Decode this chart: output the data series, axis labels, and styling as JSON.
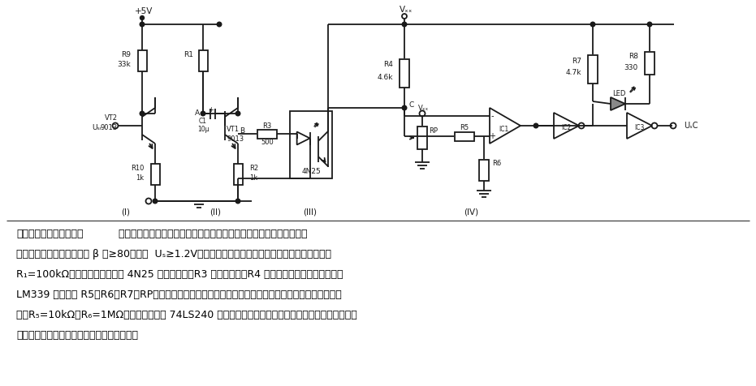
{
  "bg_color": "#ffffff",
  "lc": "#1a1a1a",
  "lw": 1.3,
  "title_bold": "脉冲量输入信号调理电路",
  "title_rest": "  电路由放大电路、输入脉冲量缓冲、光耦及去抖电路、整形缓冲驱动电",
  "desc_lines": [
    "路组成。放大电路三级管的 β 値≥80，要求  Uₛ≥1.2V（峦一峦値），脉冲量缓冲驱动电路为共集电路，",
    "R₁=100kΩ。光耦去抖电路选用 4N25 光电隔离器，R3 是限流电阻，R4 是光敏二极管的负载电阻、由",
    "LM339 比较器和 R5、R6、R7、RP组成的电位滖后电平比较器，可消除光电耦合器内部噪声电压带来的干",
    "扰，R₅=10kΩ，R₆=1MΩ。脉冲信号经用 74LS240 施密特总线驱动器整形后输出。本电路可应用于脉冲",
    "测量、开关状态监控、限位开关监控等场合。"
  ]
}
